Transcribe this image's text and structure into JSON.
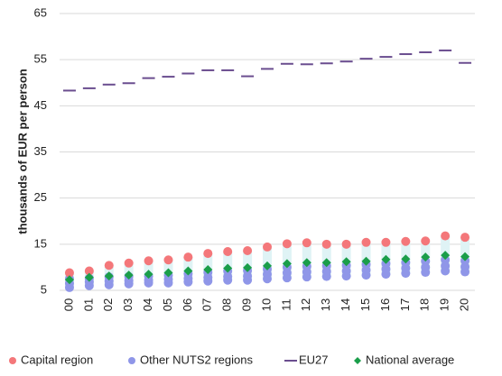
{
  "chart_data": {
    "type": "scatter",
    "y_label": "thousands of EUR per person",
    "categories": [
      "00",
      "01",
      "02",
      "03",
      "04",
      "05",
      "06",
      "07",
      "08",
      "09",
      "10",
      "11",
      "12",
      "13",
      "14",
      "15",
      "16",
      "17",
      "18",
      "19",
      "20"
    ],
    "ylim": [
      5,
      65
    ],
    "yticks": [
      5,
      15,
      25,
      35,
      45,
      55,
      65
    ],
    "grid": true,
    "legend": "bottom",
    "series": [
      {
        "name": "Capital region",
        "color": "#f4777a",
        "marker": "circle",
        "values": [
          8.8,
          9.2,
          10.4,
          10.9,
          11.4,
          11.6,
          12.2,
          13.0,
          13.4,
          13.6,
          14.4,
          15.1,
          15.3,
          15.0,
          15.0,
          15.4,
          15.4,
          15.6,
          15.7,
          16.8,
          16.5
        ]
      },
      {
        "name": "Other NUTS2 regions",
        "color": "#8f96e8",
        "marker": "circle",
        "values": [
          [
            5.6,
            6.5,
            7.5
          ],
          [
            6.0,
            6.8,
            7.6
          ],
          [
            6.2,
            7.0,
            7.9
          ],
          [
            6.4,
            7.1,
            8.0
          ],
          [
            6.6,
            7.2,
            8.1
          ],
          [
            6.6,
            7.4,
            8.3
          ],
          [
            6.8,
            7.6,
            8.6
          ],
          [
            7.0,
            7.8,
            8.9
          ],
          [
            7.2,
            8.0,
            9.2
          ],
          [
            7.2,
            8.1,
            9.3
          ],
          [
            7.5,
            8.5,
            9.6
          ],
          [
            7.7,
            8.8,
            10.0
          ],
          [
            7.9,
            9.0,
            10.2
          ],
          [
            8.0,
            9.1,
            10.3
          ],
          [
            8.1,
            9.2,
            10.4
          ],
          [
            8.3,
            9.4,
            10.6
          ],
          [
            8.5,
            9.6,
            10.8
          ],
          [
            8.7,
            9.8,
            11.0
          ],
          [
            8.9,
            10.0,
            11.3
          ],
          [
            9.2,
            10.3,
            11.6
          ],
          [
            9.0,
            10.1,
            11.4
          ]
        ]
      },
      {
        "name": "EU27",
        "color": "#6a4d8f",
        "marker": "dash",
        "values": [
          48.3,
          48.8,
          49.6,
          49.9,
          51.0,
          51.3,
          52.0,
          52.7,
          52.7,
          51.4,
          53.0,
          54.1,
          54.0,
          54.2,
          54.6,
          55.2,
          55.6,
          56.2,
          56.6,
          57.0,
          54.3
        ]
      },
      {
        "name": "National average",
        "color": "#1a9e4a",
        "marker": "diamond",
        "values": [
          7.3,
          7.8,
          8.1,
          8.3,
          8.5,
          8.8,
          9.2,
          9.5,
          9.8,
          9.9,
          10.3,
          10.8,
          11.0,
          11.0,
          11.2,
          11.3,
          11.7,
          11.8,
          12.2,
          12.6,
          12.3
        ]
      }
    ]
  }
}
